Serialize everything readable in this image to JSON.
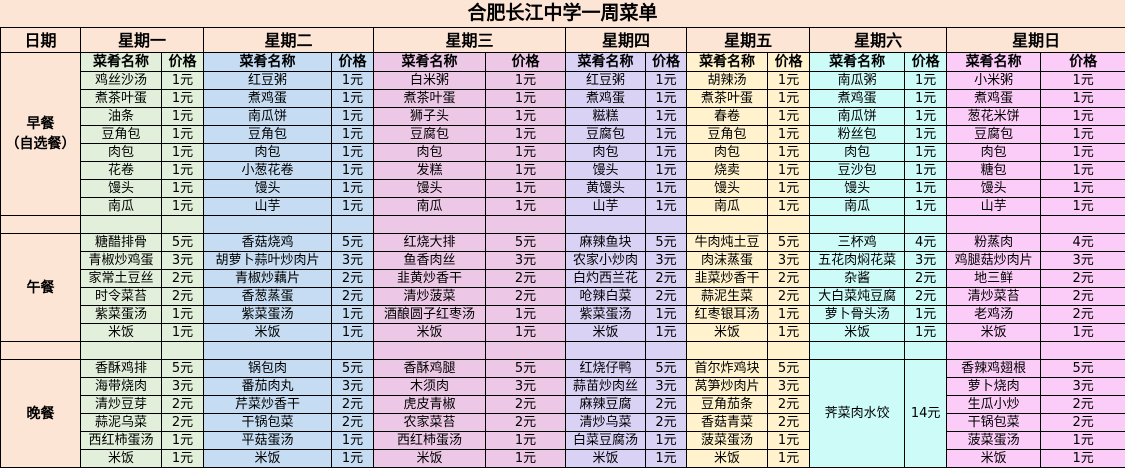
{
  "title": "合肥长江中学一周菜单",
  "header": {
    "date_label": "日期",
    "dish_label": "菜肴名称",
    "price_label": "价格"
  },
  "meals": [
    {
      "key": "breakfast",
      "label": "早餐",
      "sublabel": "（自选餐）"
    },
    {
      "key": "lunch",
      "label": "午餐",
      "sublabel": ""
    },
    {
      "key": "dinner",
      "label": "晚餐",
      "sublabel": ""
    }
  ],
  "days": [
    {
      "name": "星期一",
      "color": "#e2efda",
      "breakfast": [
        [
          "鸡丝沙汤",
          "1元"
        ],
        [
          "煮茶叶蛋",
          "1元"
        ],
        [
          "油条",
          "1元"
        ],
        [
          "豆角包",
          "1元"
        ],
        [
          "肉包",
          "1元"
        ],
        [
          "花卷",
          "1元"
        ],
        [
          "馒头",
          "1元"
        ],
        [
          "南瓜",
          "1元"
        ]
      ],
      "lunch": [
        [
          "糖醋排骨",
          "5元"
        ],
        [
          "青椒炒鸡蛋",
          "3元"
        ],
        [
          "家常土豆丝",
          "2元"
        ],
        [
          "时令菜苔",
          "2元"
        ],
        [
          "紫菜蛋汤",
          "1元"
        ],
        [
          "米饭",
          "1元"
        ]
      ],
      "dinner": [
        [
          "香酥鸡排",
          "5元"
        ],
        [
          "海带烧肉",
          "3元"
        ],
        [
          "清炒豆芽",
          "2元"
        ],
        [
          "蒜泥乌菜",
          "2元"
        ],
        [
          "西红柿蛋汤",
          "1元"
        ],
        [
          "米饭",
          "1元"
        ]
      ]
    },
    {
      "name": "星期二",
      "color": "#c5dcf2",
      "breakfast": [
        [
          "红豆粥",
          "1元"
        ],
        [
          "煮鸡蛋",
          "1元"
        ],
        [
          "南瓜饼",
          "1元"
        ],
        [
          "豆角包",
          "1元"
        ],
        [
          "肉包",
          "1元"
        ],
        [
          "小葱花卷",
          "1元"
        ],
        [
          "馒头",
          "1元"
        ],
        [
          "山芋",
          "1元"
        ]
      ],
      "lunch": [
        [
          "香菇烧鸡",
          "5元"
        ],
        [
          "胡萝卜蒜叶炒肉片",
          "3元"
        ],
        [
          "青椒炒藕片",
          "2元"
        ],
        [
          "香葱蒸蛋",
          "2元"
        ],
        [
          "紫菜蛋汤",
          "1元"
        ],
        [
          "米饭",
          "1元"
        ]
      ],
      "dinner": [
        [
          "锅包肉",
          "5元"
        ],
        [
          "番茄肉丸",
          "3元"
        ],
        [
          "芹菜炒香干",
          "2元"
        ],
        [
          "干锅包菜",
          "2元"
        ],
        [
          "平菇蛋汤",
          "1元"
        ],
        [
          "米饭",
          "1元"
        ]
      ]
    },
    {
      "name": "星期三",
      "color": "#ecc8e6",
      "breakfast": [
        [
          "白米粥",
          "1元"
        ],
        [
          "煮茶叶蛋",
          "1元"
        ],
        [
          "狮子头",
          "1元"
        ],
        [
          "豆腐包",
          "1元"
        ],
        [
          "肉包",
          "1元"
        ],
        [
          "发糕",
          "1元"
        ],
        [
          "馒头",
          "1元"
        ],
        [
          "南瓜",
          "1元"
        ]
      ],
      "lunch": [
        [
          "红烧大排",
          "5元"
        ],
        [
          "鱼香肉丝",
          "3元"
        ],
        [
          "韭黄炒香干",
          "2元"
        ],
        [
          "清炒菠菜",
          "2元"
        ],
        [
          "酒酿圆子红枣汤",
          "1元"
        ],
        [
          "米饭",
          "1元"
        ]
      ],
      "dinner": [
        [
          "香酥鸡腿",
          "5元"
        ],
        [
          "木须肉",
          "3元"
        ],
        [
          "虎皮青椒",
          "2元"
        ],
        [
          "农家菜苔",
          "2元"
        ],
        [
          "西红柿蛋汤",
          "1元"
        ],
        [
          "米饭",
          "1元"
        ]
      ]
    },
    {
      "name": "星期四",
      "color": "#d9d2f5",
      "breakfast": [
        [
          "红豆粥",
          "1元"
        ],
        [
          "煮鸡蛋",
          "1元"
        ],
        [
          "糍糕",
          "1元"
        ],
        [
          "豆腐包",
          "1元"
        ],
        [
          "肉包",
          "1元"
        ],
        [
          "馒头",
          "1元"
        ],
        [
          "黄馒头",
          "1元"
        ],
        [
          "山芋",
          "1元"
        ]
      ],
      "lunch": [
        [
          "麻辣鱼块",
          "5元"
        ],
        [
          "农家小炒肉",
          "3元"
        ],
        [
          "白灼西兰花",
          "2元"
        ],
        [
          "呛辣白菜",
          "2元"
        ],
        [
          "紫菜蛋汤",
          "1元"
        ],
        [
          "米饭",
          "1元"
        ]
      ],
      "dinner": [
        [
          "红烧仔鸭",
          "5元"
        ],
        [
          "蒜苗炒肉丝",
          "3元"
        ],
        [
          "麻辣豆腐",
          "2元"
        ],
        [
          "清炒乌菜",
          "2元"
        ],
        [
          "白菜豆腐汤",
          "1元"
        ],
        [
          "米饭",
          "1元"
        ]
      ]
    },
    {
      "name": "星期五",
      "color": "#fff2cc",
      "breakfast": [
        [
          "胡辣汤",
          "1元"
        ],
        [
          "煮茶叶蛋",
          "1元"
        ],
        [
          "春卷",
          "1元"
        ],
        [
          "豆角包",
          "1元"
        ],
        [
          "肉包",
          "1元"
        ],
        [
          "烧卖",
          "1元"
        ],
        [
          "馒头",
          "1元"
        ],
        [
          "南瓜",
          "1元"
        ]
      ],
      "lunch": [
        [
          "牛肉炖土豆",
          "5元"
        ],
        [
          "肉沫蒸蛋",
          "3元"
        ],
        [
          "韭菜炒香干",
          "2元"
        ],
        [
          "蒜泥生菜",
          "2元"
        ],
        [
          "红枣银耳汤",
          "1元"
        ],
        [
          "米饭",
          "1元"
        ]
      ],
      "dinner": [
        [
          "首尔炸鸡块",
          "5元"
        ],
        [
          "莴笋炒肉片",
          "3元"
        ],
        [
          "豆角茄条",
          "2元"
        ],
        [
          "香菇青菜",
          "2元"
        ],
        [
          "菠菜蛋汤",
          "1元"
        ],
        [
          "米饭",
          "1元"
        ]
      ]
    },
    {
      "name": "星期六",
      "color": "#ccfbf8",
      "breakfast": [
        [
          "南瓜粥",
          "1元"
        ],
        [
          "煮鸡蛋",
          "1元"
        ],
        [
          "南瓜饼",
          "1元"
        ],
        [
          "粉丝包",
          "1元"
        ],
        [
          "肉包",
          "1元"
        ],
        [
          "豆沙包",
          "1元"
        ],
        [
          "馒头",
          "1元"
        ],
        [
          "南瓜",
          "1元"
        ]
      ],
      "lunch": [
        [
          "三杯鸡",
          "4元"
        ],
        [
          "五花肉焖花菜",
          "3元"
        ],
        [
          "杂酱",
          "2元"
        ],
        [
          "大白菜炖豆腐",
          "2元"
        ],
        [
          "萝卜骨头汤",
          "1元"
        ],
        [
          "米饭",
          "1元"
        ]
      ],
      "dinner": [
        [
          "荠菜肉水饺",
          "14元"
        ]
      ]
    },
    {
      "name": "星期日",
      "color": "#fcccf9",
      "breakfast": [
        [
          "小米粥",
          "1元"
        ],
        [
          "煮鸡蛋",
          "1元"
        ],
        [
          "葱花米饼",
          "1元"
        ],
        [
          "豆腐包",
          "1元"
        ],
        [
          "肉包",
          "1元"
        ],
        [
          "糖包",
          "1元"
        ],
        [
          "馒头",
          "1元"
        ],
        [
          "山芋",
          "1元"
        ]
      ],
      "lunch": [
        [
          "粉蒸肉",
          "4元"
        ],
        [
          "鸡腿菇炒肉片",
          "3元"
        ],
        [
          "地三鲜",
          "2元"
        ],
        [
          "清炒菜苔",
          "2元"
        ],
        [
          "老鸡汤",
          "2元"
        ],
        [
          "米饭",
          "1元"
        ]
      ],
      "dinner": [
        [
          "香辣鸡翅根",
          "5元"
        ],
        [
          "萝卜烧肉",
          "3元"
        ],
        [
          "生瓜小炒",
          "2元"
        ],
        [
          "干锅包菜",
          "2元"
        ],
        [
          "菠菜蛋汤",
          "1元"
        ],
        [
          "米饭",
          "1元"
        ]
      ]
    }
  ]
}
